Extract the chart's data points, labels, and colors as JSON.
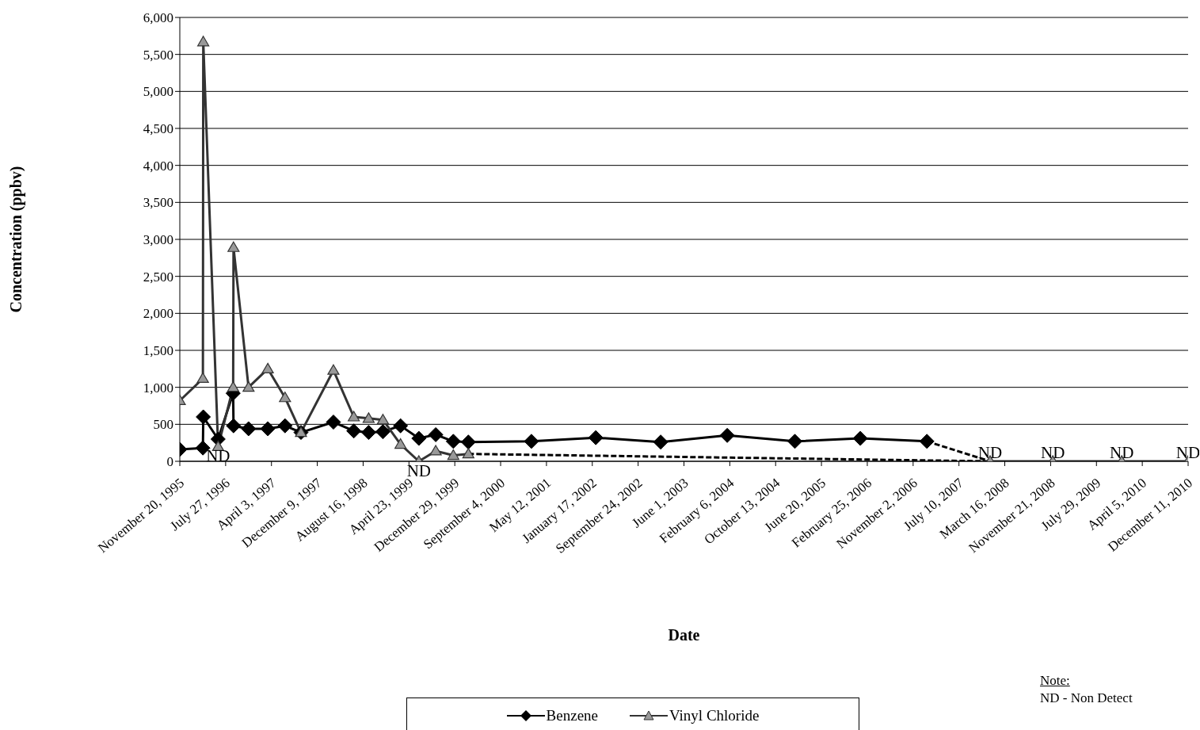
{
  "chart_data": {
    "type": "line",
    "xlabel": "Date",
    "ylabel": "Concentration (ppbv)",
    "xlim": [
      "1995-11-20",
      "2010-12-11"
    ],
    "xticks": [
      {
        "value": "1995-11-20",
        "label": "November 20, 1995"
      },
      {
        "value": "1996-07-27",
        "label": "July 27, 1996"
      },
      {
        "value": "1997-04-03",
        "label": "April 3, 1997"
      },
      {
        "value": "1997-12-09",
        "label": "December 9, 1997"
      },
      {
        "value": "1998-08-16",
        "label": "August 16, 1998"
      },
      {
        "value": "1999-04-23",
        "label": "April 23, 1999"
      },
      {
        "value": "1999-12-29",
        "label": "December 29, 1999"
      },
      {
        "value": "2000-09-04",
        "label": "September 4, 2000"
      },
      {
        "value": "2001-05-12",
        "label": "May 12, 2001"
      },
      {
        "value": "2002-01-17",
        "label": "January 17, 2002"
      },
      {
        "value": "2002-09-24",
        "label": "September 24, 2002"
      },
      {
        "value": "2003-06-01",
        "label": "June 1, 2003"
      },
      {
        "value": "2004-02-06",
        "label": "February 6, 2004"
      },
      {
        "value": "2004-10-13",
        "label": "October 13, 2004"
      },
      {
        "value": "2005-06-20",
        "label": "June 20, 2005"
      },
      {
        "value": "2006-02-25",
        "label": "February 25, 2006"
      },
      {
        "value": "2006-11-02",
        "label": "November 2, 2006"
      },
      {
        "value": "2007-07-10",
        "label": "July 10, 2007"
      },
      {
        "value": "2008-03-16",
        "label": "March 16, 2008"
      },
      {
        "value": "2008-11-21",
        "label": "November 21, 2008"
      },
      {
        "value": "2009-07-29",
        "label": "July 29, 2009"
      },
      {
        "value": "2010-04-05",
        "label": "April 5, 2010"
      },
      {
        "value": "2010-12-11",
        "label": "December 11, 2010"
      }
    ],
    "ylim": [
      0,
      6000
    ],
    "yticks": [
      0,
      500,
      {
        "value": 1000,
        "label": "1,000"
      },
      {
        "value": 1500,
        "label": "1,500"
      },
      {
        "value": 2000,
        "label": "2,000"
      },
      {
        "value": 2500,
        "label": "2,500"
      },
      {
        "value": 3000,
        "label": "3,000"
      },
      {
        "value": 3500,
        "label": "3,500"
      },
      {
        "value": 4000,
        "label": "4,000"
      },
      {
        "value": 4500,
        "label": "4,500"
      },
      {
        "value": 5000,
        "label": "5,000"
      },
      {
        "value": 5500,
        "label": "5,500"
      },
      {
        "value": 6000,
        "label": "6,000"
      }
    ],
    "grid": "y",
    "legend": "bottom",
    "series": [
      {
        "name": "Benzene",
        "color": "#000000",
        "marker": "diamond",
        "line_style": "solid",
        "x": [
          "1995-11-20",
          "1996-03-25",
          "1996-03-27",
          "1996-06-16",
          "1996-09-06",
          "1996-09-08",
          "1996-11-29",
          "1997-03-14",
          "1997-06-16",
          "1997-09-11",
          "1998-03-07",
          "1998-06-26",
          "1998-09-15",
          "1998-12-02",
          "1999-03-08",
          "1999-06-16",
          "1999-09-16",
          "1999-12-21",
          "2000-03-12",
          "2001-02-19",
          "2002-02-05",
          "2003-01-25",
          "2004-01-23",
          "2005-01-26",
          "2006-01-18",
          "2007-01-16"
        ],
        "values": [
          160,
          180,
          600,
          300,
          920,
          480,
          440,
          440,
          480,
          390,
          530,
          410,
          390,
          400,
          480,
          310,
          360,
          270,
          260,
          270,
          320,
          260,
          350,
          270,
          310,
          270
        ]
      },
      {
        "name": "Vinyl Chloride",
        "color": "#999999",
        "marker": "triangle",
        "line_style": "solid",
        "x": [
          "1995-11-20",
          "1996-03-25",
          "1996-03-27",
          "1996-06-16",
          "1996-09-06",
          "1996-09-08",
          "1996-11-29",
          "1997-03-14",
          "1997-06-16",
          "1997-09-11",
          "1998-03-07",
          "1998-06-26",
          "1998-09-15",
          "1998-12-02",
          "1999-03-08",
          "1999-06-16",
          "1999-09-16",
          "1999-12-21",
          "2000-03-12",
          null,
          "2007-12-27",
          "2008-12-03",
          "2009-12-14",
          "2010-12-11"
        ],
        "values": [
          820,
          1120,
          5670,
          200,
          1000,
          2890,
          1000,
          1250,
          860,
          390,
          1230,
          600,
          580,
          560,
          230,
          0,
          140,
          80,
          100,
          null,
          0,
          0,
          0,
          0
        ]
      },
      {
        "color": "#000000",
        "marker": "none",
        "line_style": "dashed",
        "x": [
          "2007-01-16",
          "2007-12-27"
        ],
        "values": [
          270,
          0
        ]
      },
      {
        "color": "#000000",
        "marker": "none",
        "line_style": "dashed",
        "x": [
          "2000-03-12",
          "2007-12-27"
        ],
        "values": [
          100,
          0
        ]
      }
    ],
    "annotations": [
      {
        "text": "ND",
        "x": "1996-06-16",
        "y": 200
      },
      {
        "text": "ND",
        "x": "1999-06-16",
        "y": 0
      },
      {
        "text": "ND",
        "x": "2007-12-27",
        "y": 0
      },
      {
        "text": "ND",
        "x": "2008-12-03",
        "y": 0
      },
      {
        "text": "ND",
        "x": "2009-12-14",
        "y": 0
      },
      {
        "text": "ND",
        "x": "2010-12-11",
        "y": 0
      },
      "Note:",
      "ND - Non Detect"
    ]
  }
}
